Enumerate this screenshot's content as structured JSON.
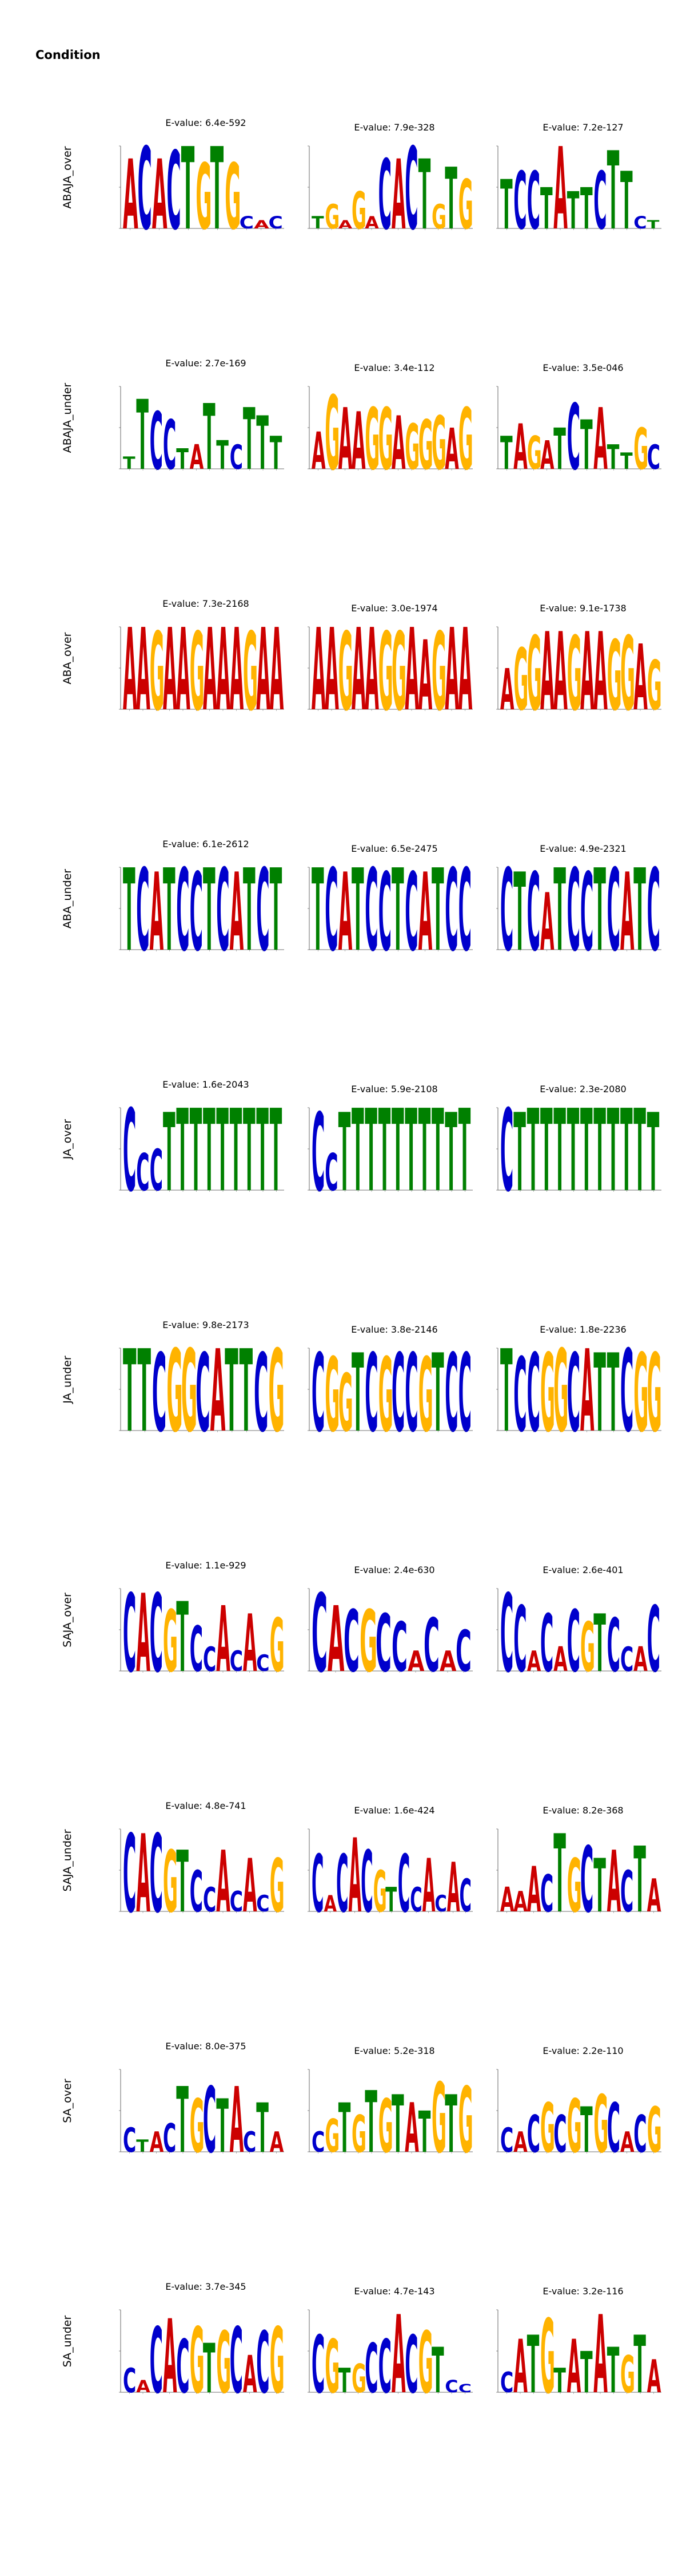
{
  "title": "Condition",
  "colors": {
    "A": "#cc0000",
    "C": "#0000cc",
    "G": "#ffb300",
    "T": "#008000"
  },
  "rows": [
    {
      "label": "ABAJA_over",
      "motifs": [
        {
          "evalue": "E-value: 6.4e-592",
          "seq": "ACACTGTGCAC",
          "heights": [
            1.7,
            2.0,
            1.7,
            1.9,
            2.0,
            1.6,
            2.0,
            1.6,
            0.3,
            0.2,
            0.3
          ]
        },
        {
          "evalue": "E-value: 7.9e-328",
          "seq": "TGAGACACTGTG",
          "heights": [
            0.3,
            0.6,
            0.2,
            0.9,
            0.3,
            1.7,
            1.7,
            2.0,
            1.7,
            0.6,
            1.5,
            1.2
          ]
        },
        {
          "evalue": "E-value: 7.2e-127",
          "seq": "TCCTATTCTTCT",
          "heights": [
            1.2,
            1.4,
            1.4,
            1.0,
            2.0,
            0.9,
            1.0,
            1.4,
            1.9,
            1.4,
            0.3,
            0.2
          ]
        }
      ]
    },
    {
      "label": "ABAJA_under",
      "motifs": [
        {
          "evalue": "E-value: 2.7e-169",
          "seq": "TTCCTATTCTTT",
          "heights": [
            0.3,
            1.7,
            1.4,
            1.2,
            0.5,
            0.6,
            1.6,
            0.7,
            0.6,
            1.5,
            1.3,
            0.8
          ]
        },
        {
          "evalue": "E-value: 3.4e-112",
          "seq": "AGAAGGAGGGAG",
          "heights": [
            0.9,
            1.8,
            1.5,
            1.4,
            1.5,
            1.5,
            1.3,
            1.1,
            1.2,
            1.3,
            1.0,
            1.5
          ]
        },
        {
          "evalue": "E-value: 3.5e-046",
          "seq": "TAGATCTATTGC",
          "heights": [
            0.8,
            1.1,
            0.8,
            0.7,
            1.0,
            1.6,
            1.2,
            1.5,
            0.6,
            0.4,
            1.0,
            0.6
          ]
        }
      ]
    },
    {
      "label": "ABA_over",
      "motifs": [
        {
          "evalue": "E-value: 7.3e-2168",
          "seq": "AAGAAGAAAGAA",
          "heights": [
            2.0,
            2.0,
            1.9,
            2.0,
            2.0,
            1.9,
            2.0,
            2.0,
            2.0,
            1.9,
            2.0,
            2.0
          ]
        },
        {
          "evalue": "E-value: 3.0e-1974",
          "seq": "AAGAAGGAAGAA",
          "heights": [
            2.0,
            2.0,
            1.9,
            2.0,
            2.0,
            1.9,
            1.9,
            2.0,
            1.7,
            1.9,
            2.0,
            2.0
          ]
        },
        {
          "evalue": "E-value: 9.1e-1738",
          "seq": "AGGAAGAAGGAG",
          "heights": [
            1.0,
            1.5,
            1.8,
            1.9,
            1.9,
            1.8,
            1.9,
            1.9,
            1.7,
            1.8,
            1.6,
            1.2
          ]
        }
      ]
    },
    {
      "label": "ABA_under",
      "motifs": [
        {
          "evalue": "E-value: 6.1e-2612",
          "seq": "TCATCCTCATCT",
          "heights": [
            2.0,
            2.0,
            1.9,
            2.0,
            2.0,
            1.9,
            2.0,
            2.0,
            1.9,
            2.0,
            2.0,
            2.0
          ]
        },
        {
          "evalue": "E-value: 6.5e-2475",
          "seq": "TCATCCTCATCC",
          "heights": [
            2.0,
            2.0,
            1.9,
            2.0,
            2.0,
            1.9,
            2.0,
            1.9,
            1.9,
            2.0,
            2.0,
            2.0
          ]
        },
        {
          "evalue": "E-value: 4.9e-2321",
          "seq": "CTCATCCTCATC",
          "heights": [
            2.0,
            1.9,
            1.9,
            1.4,
            2.0,
            2.0,
            1.9,
            2.0,
            2.0,
            1.9,
            2.0,
            2.0
          ]
        }
      ]
    },
    {
      "label": "JA_over",
      "motifs": [
        {
          "evalue": "E-value: 1.6e-2043",
          "seq": "CCCTTTTTTTTT",
          "heights": [
            2.0,
            0.9,
            1.0,
            1.9,
            2.0,
            2.0,
            2.0,
            2.0,
            2.0,
            2.0,
            2.0,
            2.0
          ]
        },
        {
          "evalue": "E-value: 5.9e-2108",
          "seq": "CCTTTTTTTTTT",
          "heights": [
            1.9,
            0.9,
            1.9,
            2.0,
            2.0,
            2.0,
            2.0,
            2.0,
            2.0,
            2.0,
            1.9,
            2.0
          ]
        },
        {
          "evalue": "E-value: 2.3e-2080",
          "seq": "CTTTTTTTTTTT",
          "heights": [
            2.0,
            1.9,
            2.0,
            2.0,
            2.0,
            2.0,
            2.0,
            2.0,
            2.0,
            2.0,
            2.0,
            1.9
          ]
        }
      ]
    },
    {
      "label": "JA_under",
      "motifs": [
        {
          "evalue": "E-value: 9.8e-2173",
          "seq": "TTCGGCATTCG",
          "heights": [
            2.0,
            2.0,
            1.9,
            2.0,
            2.0,
            1.9,
            2.0,
            2.0,
            2.0,
            1.9,
            2.0
          ]
        },
        {
          "evalue": "E-value: 3.8e-2146",
          "seq": "CGGTCGCCGTCC",
          "heights": [
            1.9,
            1.8,
            1.4,
            1.9,
            1.9,
            1.8,
            1.9,
            1.9,
            1.8,
            1.9,
            1.9,
            1.9
          ]
        },
        {
          "evalue": "E-value: 1.8e-2236",
          "seq": "TCCGGCATTCGG",
          "heights": [
            2.0,
            1.8,
            1.9,
            1.9,
            2.0,
            1.9,
            2.0,
            1.9,
            1.9,
            2.0,
            1.9,
            1.9
          ]
        }
      ]
    },
    {
      "label": "SAJA_over",
      "motifs": [
        {
          "evalue": "E-value: 1.1e-929",
          "seq": "CACGTCCACACG",
          "heights": [
            1.9,
            1.9,
            1.9,
            1.5,
            1.7,
            1.1,
            0.6,
            1.6,
            0.5,
            1.4,
            0.4,
            1.3
          ]
        },
        {
          "evalue": "E-value: 2.4e-630",
          "seq": "CACGCCACAC",
          "heights": [
            1.9,
            1.6,
            1.5,
            1.5,
            1.4,
            1.2,
            0.5,
            1.3,
            0.5,
            1.0
          ]
        },
        {
          "evalue": "E-value: 2.6e-401",
          "seq": "CCACACGTCCAC",
          "heights": [
            1.9,
            1.6,
            0.5,
            1.4,
            0.6,
            1.5,
            1.2,
            1.4,
            1.3,
            0.6,
            0.6,
            1.6
          ]
        }
      ]
    },
    {
      "label": "SAJA_under",
      "motifs": [
        {
          "evalue": "E-value: 4.8e-741",
          "seq": "CACGTCCACACG",
          "heights": [
            1.9,
            1.9,
            1.9,
            1.5,
            1.5,
            1.0,
            0.6,
            1.5,
            0.5,
            1.3,
            0.4,
            1.3
          ]
        },
        {
          "evalue": "E-value: 1.6e-424",
          "seq": "CACACGTCCACAC",
          "heights": [
            1.4,
            0.4,
            1.4,
            1.8,
            1.5,
            1.0,
            0.6,
            1.4,
            0.6,
            1.3,
            0.4,
            1.2,
            0.8
          ]
        },
        {
          "evalue": "E-value: 8.2e-368",
          "seq": "AAACTGCTACTA",
          "heights": [
            0.6,
            0.5,
            1.1,
            0.9,
            1.9,
            1.3,
            1.6,
            1.3,
            1.5,
            1.0,
            1.6,
            0.8
          ]
        }
      ]
    },
    {
      "label": "SA_over",
      "motifs": [
        {
          "evalue": "E-value: 8.0e-375",
          "seq": "CTACTGCTACTA",
          "heights": [
            0.6,
            0.3,
            0.5,
            0.7,
            1.6,
            1.3,
            1.6,
            1.3,
            1.6,
            0.5,
            1.2,
            0.5
          ]
        },
        {
          "evalue": "E-value: 5.2e-318",
          "seq": "CGTGTGTATGTG",
          "heights": [
            0.5,
            0.8,
            1.2,
            0.9,
            1.5,
            1.3,
            1.4,
            1.2,
            1.0,
            1.7,
            1.4,
            1.6
          ]
        },
        {
          "evalue": "E-value: 2.2e-110",
          "seq": "CACGCGTGCACG",
          "heights": [
            0.6,
            0.5,
            0.9,
            1.2,
            0.9,
            1.3,
            1.1,
            1.4,
            1.2,
            0.5,
            0.9,
            1.1
          ]
        }
      ]
    },
    {
      "label": "SA_under",
      "motifs": [
        {
          "evalue": "E-value: 3.7e-345",
          "seq": "CACACGTGCACG",
          "heights": [
            0.6,
            0.3,
            1.6,
            1.8,
            1.3,
            1.6,
            1.2,
            1.5,
            1.6,
            0.9,
            1.5,
            1.6
          ]
        },
        {
          "evalue": "E-value: 4.7e-143",
          "seq": "CGTGCCACGTCC",
          "heights": [
            1.4,
            1.3,
            0.6,
            0.7,
            1.2,
            1.3,
            1.9,
            1.4,
            1.5,
            1.1,
            0.3,
            0.2
          ]
        },
        {
          "evalue": "E-value: 3.2e-116",
          "seq": "CATGTATATGTA",
          "heights": [
            0.5,
            1.3,
            1.4,
            1.8,
            0.6,
            1.3,
            1.0,
            1.9,
            1.1,
            0.9,
            1.4,
            0.8
          ]
        }
      ]
    }
  ]
}
